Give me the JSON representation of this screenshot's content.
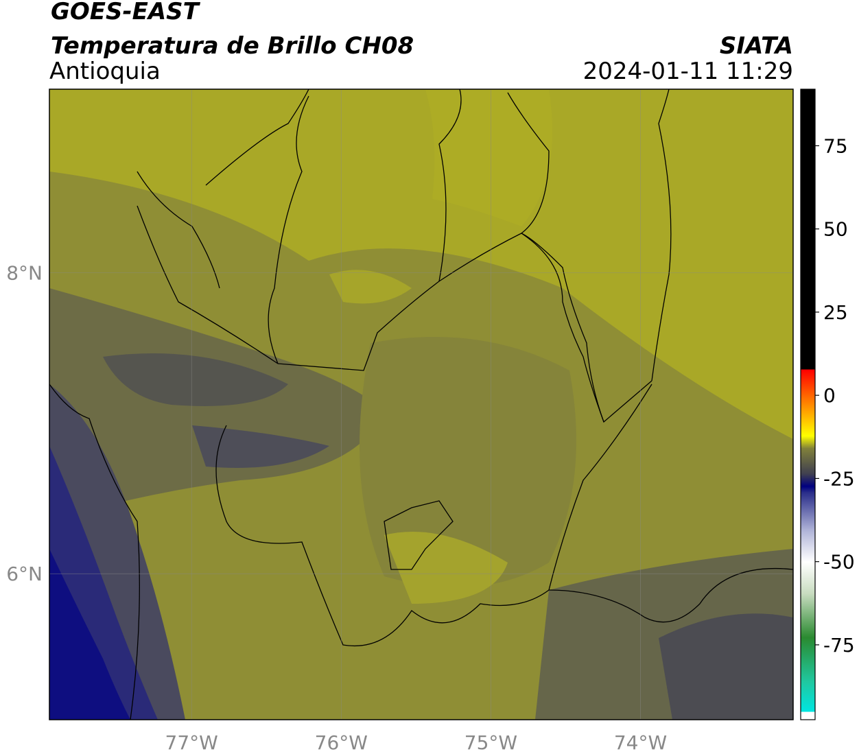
{
  "header": {
    "title": "GOES-EAST",
    "subtitle": "Temperatura de Brillo CH08",
    "region": "Antioquia",
    "source": "SIATA",
    "datetime": "2024-01-11 11:29"
  },
  "map": {
    "xlim": [
      -77.95,
      -72.98
    ],
    "ylim": [
      5.03,
      9.22
    ],
    "xticks": [
      {
        "value": -77,
        "label": "77°W"
      },
      {
        "value": -76,
        "label": "76°W"
      },
      {
        "value": -75,
        "label": "75°W"
      },
      {
        "value": -74,
        "label": "74°W"
      }
    ],
    "yticks": [
      {
        "value": 8,
        "label": "8°N"
      },
      {
        "value": 6,
        "label": "6°N"
      }
    ],
    "grid": true
  },
  "colorbar": {
    "lim": [
      -97.5,
      92
    ],
    "ticks": [
      -75,
      -50,
      -25,
      0,
      25,
      50,
      75
    ]
  }
}
